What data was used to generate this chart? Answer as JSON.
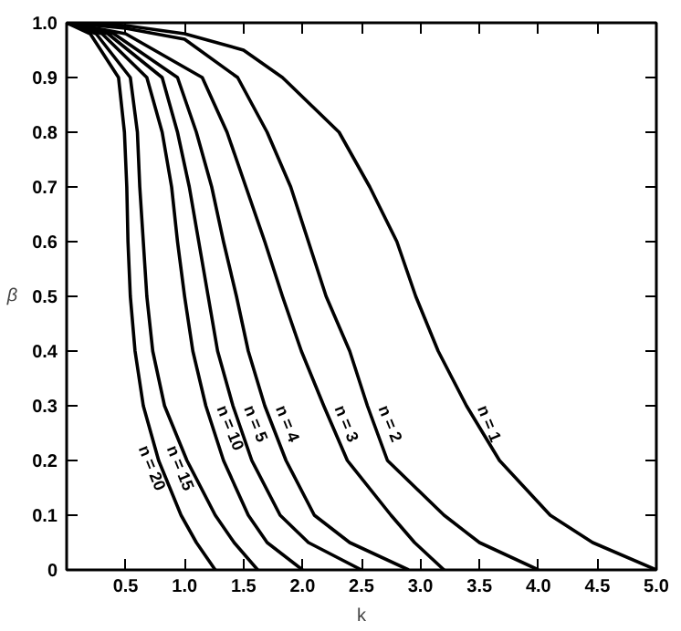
{
  "chart_data": {
    "type": "line",
    "xlabel": "k",
    "ylabel": "β",
    "xlim": [
      0,
      5
    ],
    "ylim": [
      0,
      1
    ],
    "xticks": [
      0.5,
      {
        "value": 1,
        "label": "1.0"
      },
      1.5,
      {
        "value": 2,
        "label": "2.0"
      },
      2.5,
      {
        "value": 3,
        "label": "3.0"
      },
      3.5,
      {
        "value": 4,
        "label": "4.0"
      },
      4.5,
      {
        "value": 5,
        "label": "5.0"
      }
    ],
    "yticks": [
      0,
      0.1,
      0.2,
      0.3,
      0.4,
      0.5,
      0.6,
      0.7,
      0.8,
      0.9,
      {
        "value": 1,
        "label": "1.0"
      }
    ],
    "grid": false,
    "legend": false,
    "marker": "none",
    "line_style": "solid",
    "series": [
      {
        "name": "n = 1",
        "color": "#000000",
        "x": [
          0,
          0.5,
          1.0,
          1.5,
          1.83,
          2.31,
          2.57,
          2.8,
          2.96,
          3.15,
          3.39,
          3.67,
          4.1,
          4.46,
          5.0
        ],
        "values": [
          1,
          0.995,
          0.98,
          0.95,
          0.9,
          0.8,
          0.7,
          0.6,
          0.5,
          0.4,
          0.3,
          0.2,
          0.1,
          0.05,
          0
        ]
      },
      {
        "name": "n = 2",
        "color": "#000000",
        "x": [
          0,
          0.5,
          1.0,
          1.45,
          1.7,
          1.9,
          2.05,
          2.2,
          2.4,
          2.55,
          2.72,
          3.2,
          3.5,
          4.0
        ],
        "values": [
          1,
          0.99,
          0.97,
          0.9,
          0.8,
          0.7,
          0.6,
          0.5,
          0.4,
          0.3,
          0.2,
          0.1,
          0.05,
          0
        ]
      },
      {
        "name": "n = 3",
        "color": "#000000",
        "x": [
          0,
          0.5,
          1.15,
          1.36,
          1.52,
          1.68,
          1.83,
          1.99,
          2.18,
          2.38,
          2.75,
          2.95,
          3.2
        ],
        "values": [
          1,
          0.98,
          0.9,
          0.8,
          0.7,
          0.6,
          0.5,
          0.4,
          0.3,
          0.2,
          0.1,
          0.05,
          0
        ]
      },
      {
        "name": "n = 4",
        "color": "#000000",
        "x": [
          0,
          0.4,
          0.94,
          1.1,
          1.23,
          1.33,
          1.44,
          1.54,
          1.68,
          1.86,
          2.1,
          2.4,
          2.9
        ],
        "values": [
          1,
          0.98,
          0.9,
          0.8,
          0.7,
          0.6,
          0.5,
          0.4,
          0.3,
          0.2,
          0.1,
          0.05,
          0
        ]
      },
      {
        "name": "n = 5",
        "color": "#000000",
        "x": [
          0,
          0.35,
          0.81,
          0.94,
          1.04,
          1.12,
          1.2,
          1.28,
          1.41,
          1.57,
          1.81,
          2.05,
          2.5
        ],
        "values": [
          1,
          0.98,
          0.9,
          0.8,
          0.7,
          0.6,
          0.5,
          0.4,
          0.3,
          0.2,
          0.1,
          0.05,
          0
        ]
      },
      {
        "name": "n = 10",
        "color": "#000000",
        "x": [
          0,
          0.3,
          0.68,
          0.81,
          0.89,
          0.94,
          1.0,
          1.07,
          1.18,
          1.33,
          1.54,
          1.7,
          2.0
        ],
        "values": [
          1,
          0.98,
          0.9,
          0.8,
          0.7,
          0.6,
          0.5,
          0.4,
          0.3,
          0.2,
          0.1,
          0.05,
          0
        ]
      },
      {
        "name": "n = 15",
        "color": "#000000",
        "x": [
          0,
          0.25,
          0.54,
          0.6,
          0.62,
          0.65,
          0.68,
          0.73,
          0.83,
          1.02,
          1.26,
          1.42,
          1.62
        ],
        "values": [
          1,
          0.98,
          0.9,
          0.8,
          0.7,
          0.6,
          0.5,
          0.4,
          0.3,
          0.2,
          0.1,
          0.05,
          0
        ]
      },
      {
        "name": "n = 20",
        "color": "#000000",
        "x": [
          0,
          0.2,
          0.44,
          0.49,
          0.51,
          0.52,
          0.54,
          0.58,
          0.65,
          0.78,
          0.97,
          1.1,
          1.26
        ],
        "values": [
          1,
          0.98,
          0.9,
          0.8,
          0.7,
          0.6,
          0.5,
          0.4,
          0.3,
          0.2,
          0.1,
          0.05,
          0
        ]
      }
    ]
  }
}
